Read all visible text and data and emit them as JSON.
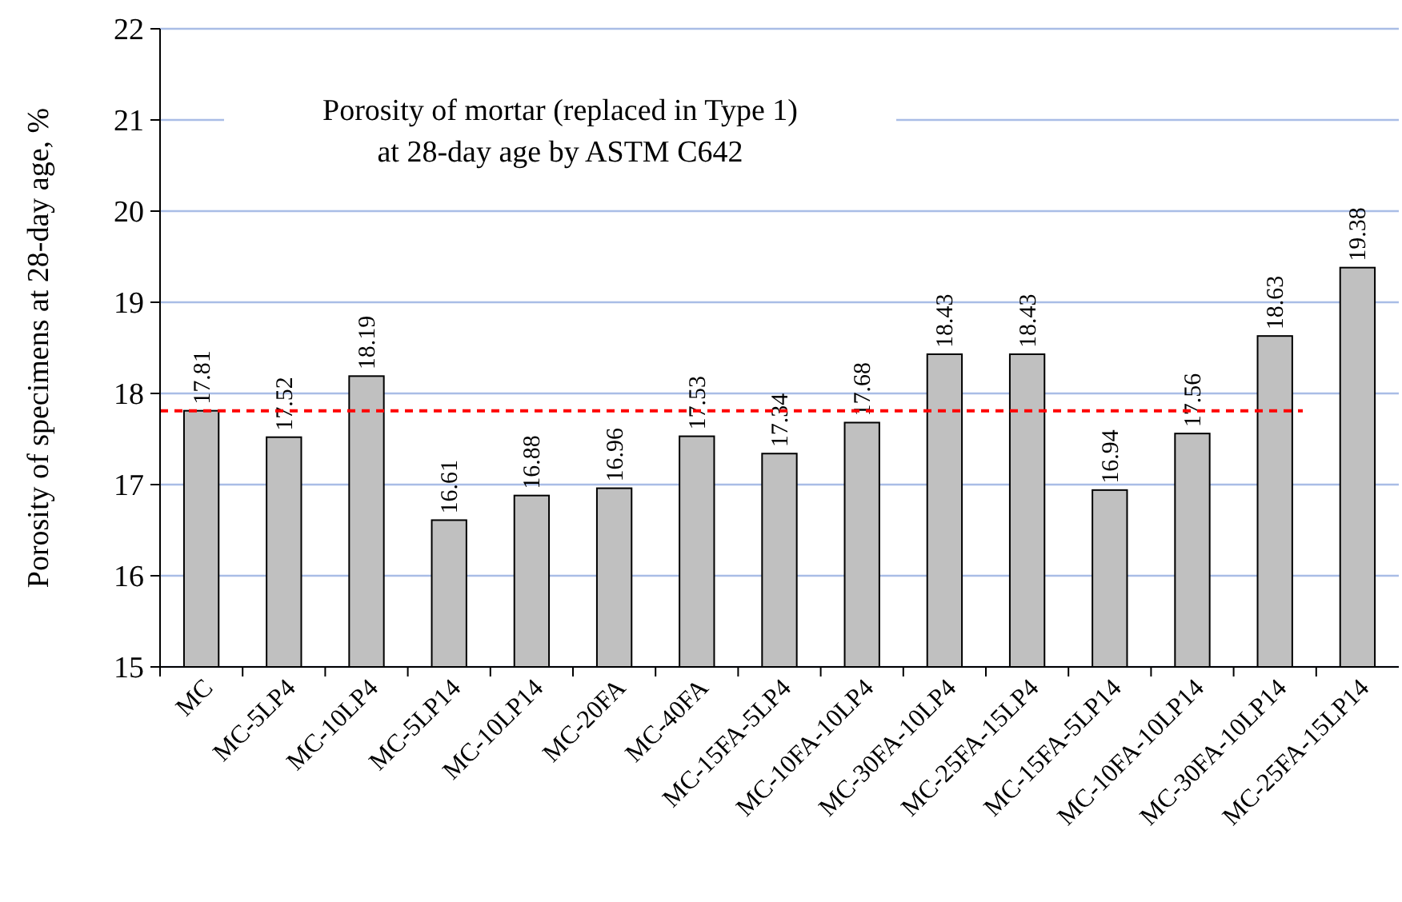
{
  "chart_data": {
    "type": "bar",
    "title": "Porosity of mortar (replaced in Type 1) at 28-day age by ASTM C642",
    "ylabel": "Porosity of specimens at 28-day age, %",
    "categories": [
      "MC",
      "MC-5LP4",
      "MC-10LP4",
      "MC-5LP14",
      "MC-10LP14",
      "MC-20FA",
      "MC-40FA",
      "MC-15FA-5LP4",
      "MC-10FA-10LP4",
      "MC-30FA-10LP4",
      "MC-25FA-15LP4",
      "MC-15FA-5LP14",
      "MC-10FA-10LP14",
      "MC-30FA-10LP14",
      "MC-25FA-15LP14"
    ],
    "values": [
      17.81,
      17.52,
      18.19,
      16.61,
      16.88,
      16.96,
      17.53,
      17.34,
      17.68,
      18.43,
      18.43,
      16.94,
      17.56,
      18.63,
      19.38
    ],
    "color": "#c0c0c0",
    "ylim": [
      15,
      22
    ],
    "yticks": [
      15,
      16,
      17,
      18,
      19,
      20,
      21,
      22
    ],
    "grid": "y",
    "data_labels": true,
    "ref_lines": [
      {
        "axis": "y",
        "value": 17.81,
        "color": "#ff0000",
        "line_style": "dashed"
      }
    ]
  }
}
